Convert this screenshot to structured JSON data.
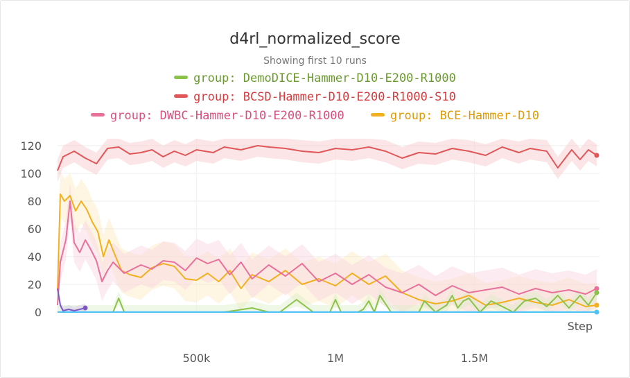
{
  "chart_data": {
    "type": "line",
    "title": "d4rl_normalized_score",
    "subtitle": "Showing first 10 runs",
    "xlabel": "Step",
    "ylabel": "",
    "xlim": [
      0,
      1950000
    ],
    "ylim": [
      0,
      125
    ],
    "x_ticks": [
      500000,
      1000000,
      1500000
    ],
    "x_tick_labels": [
      "500k",
      "1M",
      "1.5M"
    ],
    "y_ticks": [
      0,
      20,
      40,
      60,
      80,
      100,
      120
    ],
    "y_tick_labels": [
      "0",
      "20",
      "40",
      "60",
      "80",
      "100",
      "120"
    ],
    "grid": true,
    "legend_placement": "top",
    "legend": [
      {
        "label": "group: DemoDICE-Hammer-D10-E200-R1000",
        "color": "#8bc34a"
      },
      {
        "label": "group: BCSD-Hammer-D10-E200-R1000-S10",
        "color": "#e15759"
      },
      {
        "label": "group: DWBC-Hammer-D10-E200-R1000",
        "color": "#e8709a"
      },
      {
        "label": "group: BCE-Hammer-D10",
        "color": "#f2b01e"
      }
    ],
    "series": [
      {
        "name": "group: BCSD-Hammer-D10-E200-R1000-S10",
        "color": "#e15759",
        "band_color": "#f7c6c7",
        "band_width": 8,
        "x": [
          0,
          20000,
          60000,
          100000,
          140000,
          180000,
          220000,
          260000,
          300000,
          340000,
          380000,
          420000,
          460000,
          500000,
          560000,
          600000,
          660000,
          720000,
          760000,
          820000,
          880000,
          940000,
          1000000,
          1060000,
          1120000,
          1180000,
          1240000,
          1300000,
          1360000,
          1420000,
          1480000,
          1540000,
          1600000,
          1660000,
          1700000,
          1760000,
          1800000,
          1850000,
          1880000,
          1910000,
          1940000
        ],
        "y": [
          102,
          112,
          116,
          111,
          107,
          118,
          119,
          114,
          115,
          117,
          112,
          116,
          113,
          117,
          115,
          119,
          117,
          120,
          119,
          118,
          116,
          115,
          118,
          117,
          119,
          116,
          111,
          115,
          114,
          118,
          116,
          113,
          119,
          115,
          118,
          116,
          104,
          117,
          110,
          117,
          113
        ]
      },
      {
        "name": "group: BCE-Hammer-D10",
        "color": "#f2b01e",
        "band_color": "#fcebc2",
        "band_width": 16,
        "x": [
          0,
          10000,
          25000,
          45000,
          65000,
          85000,
          105000,
          125000,
          145000,
          165000,
          185000,
          205000,
          230000,
          260000,
          300000,
          340000,
          380000,
          420000,
          460000,
          500000,
          540000,
          580000,
          620000,
          660000,
          700000,
          760000,
          820000,
          880000,
          940000,
          1000000,
          1060000,
          1120000,
          1180000,
          1240000,
          1300000,
          1360000,
          1420000,
          1480000,
          1540000,
          1600000,
          1660000,
          1720000,
          1780000,
          1840000,
          1900000,
          1940000
        ],
        "y": [
          16,
          85,
          80,
          84,
          73,
          80,
          74,
          65,
          58,
          40,
          52,
          42,
          30,
          27,
          25,
          32,
          35,
          33,
          24,
          23,
          28,
          22,
          30,
          17,
          27,
          22,
          30,
          20,
          24,
          19,
          28,
          20,
          26,
          14,
          9,
          6,
          8,
          12,
          5,
          7,
          10,
          7,
          5,
          9,
          4,
          5
        ]
      },
      {
        "name": "group: DWBC-Hammer-D10-E200-R1000",
        "color": "#e8709a",
        "band_color": "#f9d3e1",
        "band_width": 14,
        "x": [
          0,
          10000,
          30000,
          45000,
          60000,
          80000,
          100000,
          120000,
          140000,
          160000,
          180000,
          200000,
          220000,
          240000,
          260000,
          300000,
          340000,
          380000,
          420000,
          460000,
          500000,
          540000,
          580000,
          620000,
          660000,
          700000,
          760000,
          820000,
          880000,
          940000,
          1000000,
          1060000,
          1120000,
          1180000,
          1240000,
          1300000,
          1360000,
          1420000,
          1480000,
          1540000,
          1600000,
          1660000,
          1720000,
          1780000,
          1840000,
          1900000,
          1940000
        ],
        "y": [
          5,
          36,
          52,
          80,
          50,
          43,
          52,
          45,
          37,
          22,
          30,
          36,
          32,
          28,
          30,
          34,
          31,
          37,
          36,
          30,
          39,
          35,
          38,
          27,
          36,
          24,
          34,
          26,
          35,
          22,
          28,
          20,
          27,
          18,
          14,
          20,
          12,
          19,
          14,
          16,
          18,
          13,
          17,
          14,
          16,
          13,
          17
        ]
      },
      {
        "name": "group: DemoDICE-Hammer-D10-E200-R1000",
        "color": "#8bc34a",
        "band_color": "#dcedc8",
        "band_width": 5,
        "x": [
          0,
          150000,
          200000,
          220000,
          240000,
          400000,
          600000,
          700000,
          760000,
          800000,
          860000,
          920000,
          980000,
          1000000,
          1020000,
          1080000,
          1100000,
          1120000,
          1140000,
          1160000,
          1200000,
          1250000,
          1300000,
          1320000,
          1360000,
          1400000,
          1420000,
          1440000,
          1460000,
          1480000,
          1520000,
          1560000,
          1600000,
          1640000,
          1680000,
          1720000,
          1760000,
          1800000,
          1840000,
          1880000,
          1910000,
          1940000
        ],
        "y": [
          0,
          0,
          0,
          10,
          0,
          0,
          0,
          3,
          0,
          0,
          9,
          0,
          0,
          9,
          0,
          0,
          2,
          8,
          0,
          12,
          0,
          0,
          0,
          8,
          0,
          5,
          12,
          3,
          8,
          10,
          0,
          8,
          4,
          0,
          8,
          10,
          4,
          12,
          3,
          12,
          5,
          14
        ]
      },
      {
        "name": "purple",
        "color": "#7e57c2",
        "band_color": "#d1c4e9",
        "band_width": 3,
        "x": [
          0,
          10000,
          20000,
          40000,
          60000,
          80000,
          100000
        ],
        "y": [
          17,
          5,
          1,
          2,
          1,
          2,
          3
        ]
      },
      {
        "name": "cyan",
        "color": "#4fc3f7",
        "band_color": "#b3e5fc",
        "band_width": 1,
        "x": [
          0,
          1940000
        ],
        "y": [
          0,
          0
        ]
      }
    ]
  }
}
